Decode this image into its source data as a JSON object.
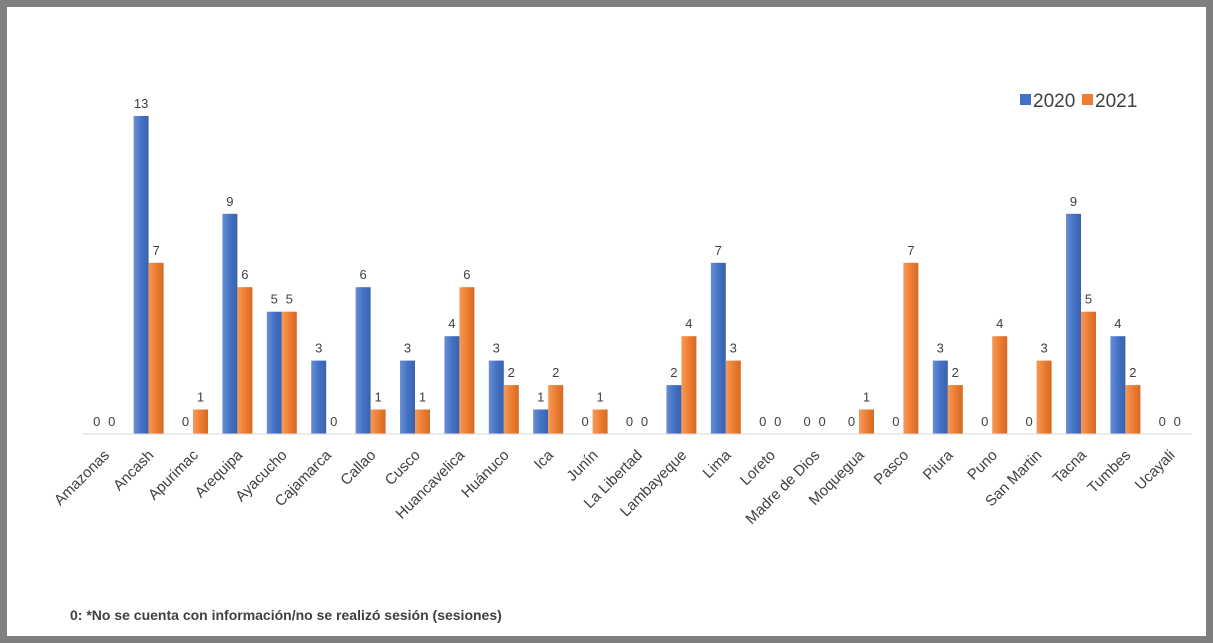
{
  "chart_data": {
    "type": "bar",
    "title": "",
    "xlabel": "",
    "ylabel": "",
    "categories": [
      "Amazonas",
      "Ancash",
      "Apurimac",
      "Arequipa",
      "Ayacucho",
      "Cajamarca",
      "Callao",
      "Cusco",
      "Huancavelica",
      "Huánuco",
      "Ica",
      "Junín",
      "La Libertad",
      "Lambayeque",
      "Lima",
      "Loreto",
      "Madre de Dios",
      "Moquegua",
      "Pasco",
      "Piura",
      "Puno",
      "San Martin",
      "Tacna",
      "Tumbes",
      "Ucayali"
    ],
    "series": [
      {
        "name": "2020",
        "color": "#4472c4",
        "values": [
          0,
          13,
          0,
          9,
          5,
          3,
          6,
          3,
          4,
          3,
          1,
          0,
          0,
          2,
          7,
          0,
          0,
          0,
          0,
          3,
          0,
          0,
          9,
          4,
          0
        ]
      },
      {
        "name": "2021",
        "color": "#ed7d31",
        "values": [
          0,
          7,
          1,
          6,
          5,
          0,
          1,
          1,
          6,
          2,
          2,
          1,
          0,
          4,
          3,
          0,
          0,
          1,
          7,
          2,
          4,
          3,
          5,
          2,
          0
        ]
      }
    ],
    "ylim": [
      0,
      13
    ],
    "grid": false,
    "legend_position": "top-right",
    "data_labels": true
  },
  "footnote": "0: *No se cuenta con información/no se realizó sesión (sesiones)"
}
